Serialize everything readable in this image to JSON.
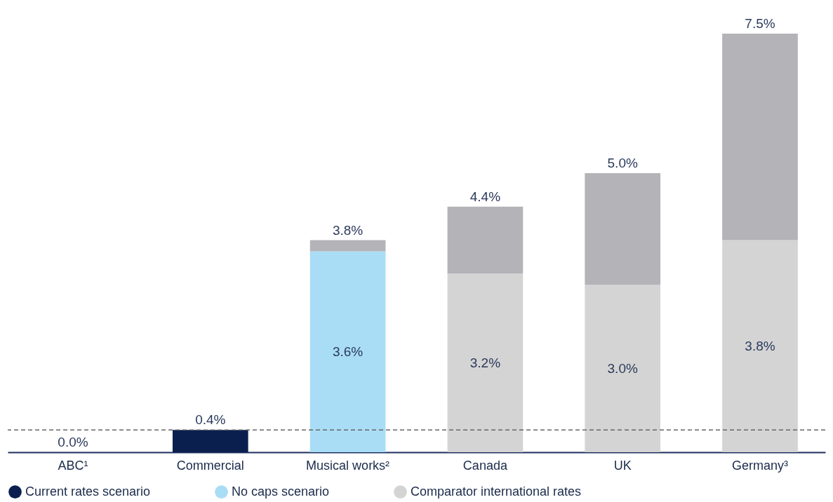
{
  "chart_data": {
    "type": "bar",
    "stacked": true,
    "categories": [
      "ABC¹",
      "Commercial",
      "Musical works²",
      "Canada",
      "UK",
      "Germany³"
    ],
    "series": [
      {
        "name": "Current rates scenario",
        "color": "#0b1f4f",
        "values": [
          0.0,
          0.4,
          null,
          null,
          null,
          null
        ]
      },
      {
        "name": "No caps scenario",
        "color": "#a9ddf5",
        "values": [
          null,
          null,
          3.6,
          null,
          null,
          null
        ],
        "value_labels": [
          null,
          null,
          "3.6%",
          null,
          null,
          null
        ]
      },
      {
        "name": "Comparator international rates",
        "color": "#d4d4d4",
        "values": [
          null,
          null,
          null,
          3.2,
          3.0,
          3.8
        ],
        "value_labels": [
          null,
          null,
          null,
          "3.2%",
          "3.0%",
          "3.8%"
        ]
      },
      {
        "color": "#b3b3b8",
        "values": [
          null,
          null,
          0.2,
          1.2,
          2.0,
          3.7
        ]
      }
    ],
    "totals": [
      "0.0%",
      "0.4%",
      "3.8%",
      "4.4%",
      "5.0%",
      "7.5%"
    ],
    "ref_lines": [
      {
        "axis": "y",
        "value": 0.4,
        "color": "#666666",
        "line_style": "dashed"
      }
    ],
    "legend": "bottom",
    "grid": false
  }
}
